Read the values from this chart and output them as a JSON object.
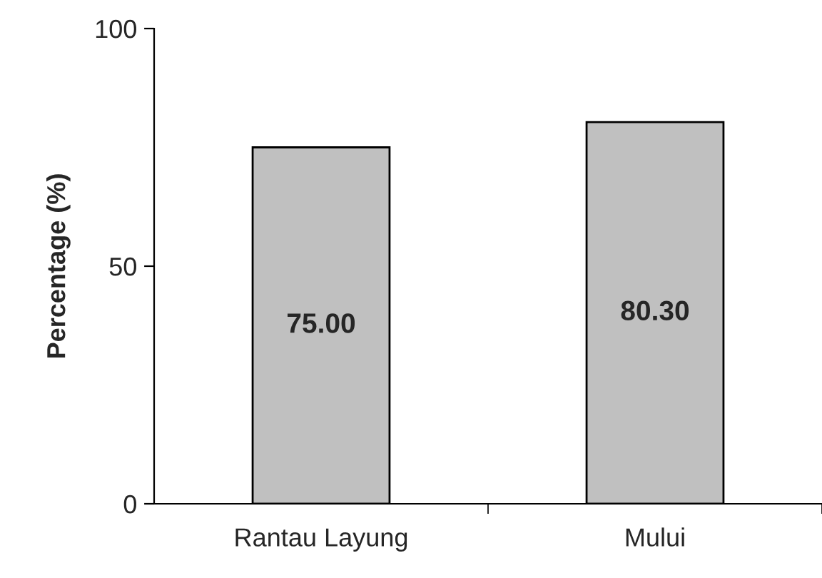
{
  "chart_data": {
    "type": "bar",
    "ylabel": "Percentage (%)",
    "categories": [
      "Rantau Layung",
      "Mului"
    ],
    "values": [
      75.0,
      80.3
    ],
    "value_labels": [
      "75.00",
      "80.30"
    ],
    "color": "#c0c0c0",
    "ylim": [
      0,
      100
    ],
    "yticks": [
      0,
      50,
      100
    ],
    "grid": false,
    "legend": false
  }
}
